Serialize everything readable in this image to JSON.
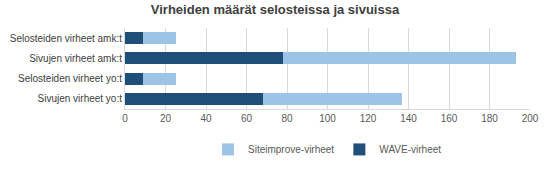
{
  "chart_data": {
    "type": "bar",
    "title": "Virheiden määrät selosteissa ja sivuissa",
    "orientation": "horizontal",
    "stacked": true,
    "categories": [
      "Selosteiden virheet amk:t",
      "Sivujen virheet amk:t",
      "Selosteiden virheet yo:t",
      "Sivujen virheet yo:t"
    ],
    "series": [
      {
        "name": "WAVE-virheet",
        "color": "#1f4e79",
        "values": [
          9,
          78,
          9,
          68
        ]
      },
      {
        "name": "Siteimprove-virheet",
        "color": "#9dc3e6",
        "values": [
          16,
          115,
          16,
          69
        ]
      }
    ],
    "xlim": [
      0,
      200
    ],
    "xticks": [
      0,
      20,
      40,
      60,
      80,
      100,
      120,
      140,
      160,
      180,
      200
    ],
    "grid": true,
    "legend": "bottom"
  }
}
